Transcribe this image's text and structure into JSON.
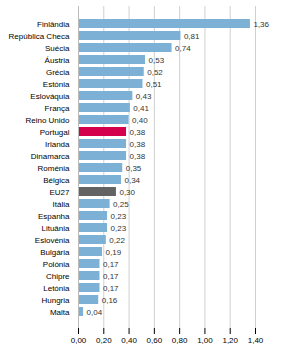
{
  "chart_data": {
    "type": "bar",
    "orientation": "horizontal",
    "categories": [
      "Finlândia",
      "República Checa",
      "Suécia",
      "Áustria",
      "Grécia",
      "Estónia",
      "Eslováquia",
      "França",
      "Reino Unido",
      "Portugal",
      "Irlanda",
      "Dinamarca",
      "Roménia",
      "Bélgica",
      "EU27",
      "Itália",
      "Espanha",
      "Lituânia",
      "Eslovénia",
      "Bulgária",
      "Polónia",
      "Chipre",
      "Letónia",
      "Hungria",
      "Malta"
    ],
    "values": [
      1.36,
      0.81,
      0.74,
      0.53,
      0.52,
      0.51,
      0.43,
      0.41,
      0.4,
      0.38,
      0.38,
      0.38,
      0.35,
      0.34,
      0.3,
      0.25,
      0.23,
      0.23,
      0.22,
      0.19,
      0.17,
      0.17,
      0.17,
      0.16,
      0.04
    ],
    "value_labels": [
      "1,36",
      "0,81",
      "0,74",
      "0,53",
      "0,52",
      "0,51",
      "0,43",
      "0,41",
      "0,40",
      "0,38",
      "0,38",
      "0,38",
      "0,35",
      "0,34",
      "0,30",
      "0,25",
      "0,23",
      "0,23",
      "0,22",
      "0,19",
      "0,17",
      "0,17",
      "0,17",
      "0,16",
      "0,04"
    ],
    "colors": [
      "#7db0d5",
      "#7db0d5",
      "#7db0d5",
      "#7db0d5",
      "#7db0d5",
      "#7db0d5",
      "#7db0d5",
      "#7db0d5",
      "#7db0d5",
      "#d4004c",
      "#7db0d5",
      "#7db0d5",
      "#7db0d5",
      "#7db0d5",
      "#636363",
      "#7db0d5",
      "#7db0d5",
      "#7db0d5",
      "#7db0d5",
      "#7db0d5",
      "#7db0d5",
      "#7db0d5",
      "#7db0d5",
      "#7db0d5",
      "#7db0d5"
    ],
    "xlim": [
      0,
      1.4
    ],
    "xticks": [
      {
        "value": 0.0,
        "label": "0,00"
      },
      {
        "value": 0.2,
        "label": "0,20"
      },
      {
        "value": 0.4,
        "label": "0,40"
      },
      {
        "value": 0.6,
        "label": "0,60"
      },
      {
        "value": 0.8,
        "label": "0,80"
      },
      {
        "value": 1.0,
        "label": "1,00"
      },
      {
        "value": 1.2,
        "label": "1,20"
      },
      {
        "value": 1.4,
        "label": "1,40"
      }
    ],
    "grid": true,
    "data_labels": true
  }
}
